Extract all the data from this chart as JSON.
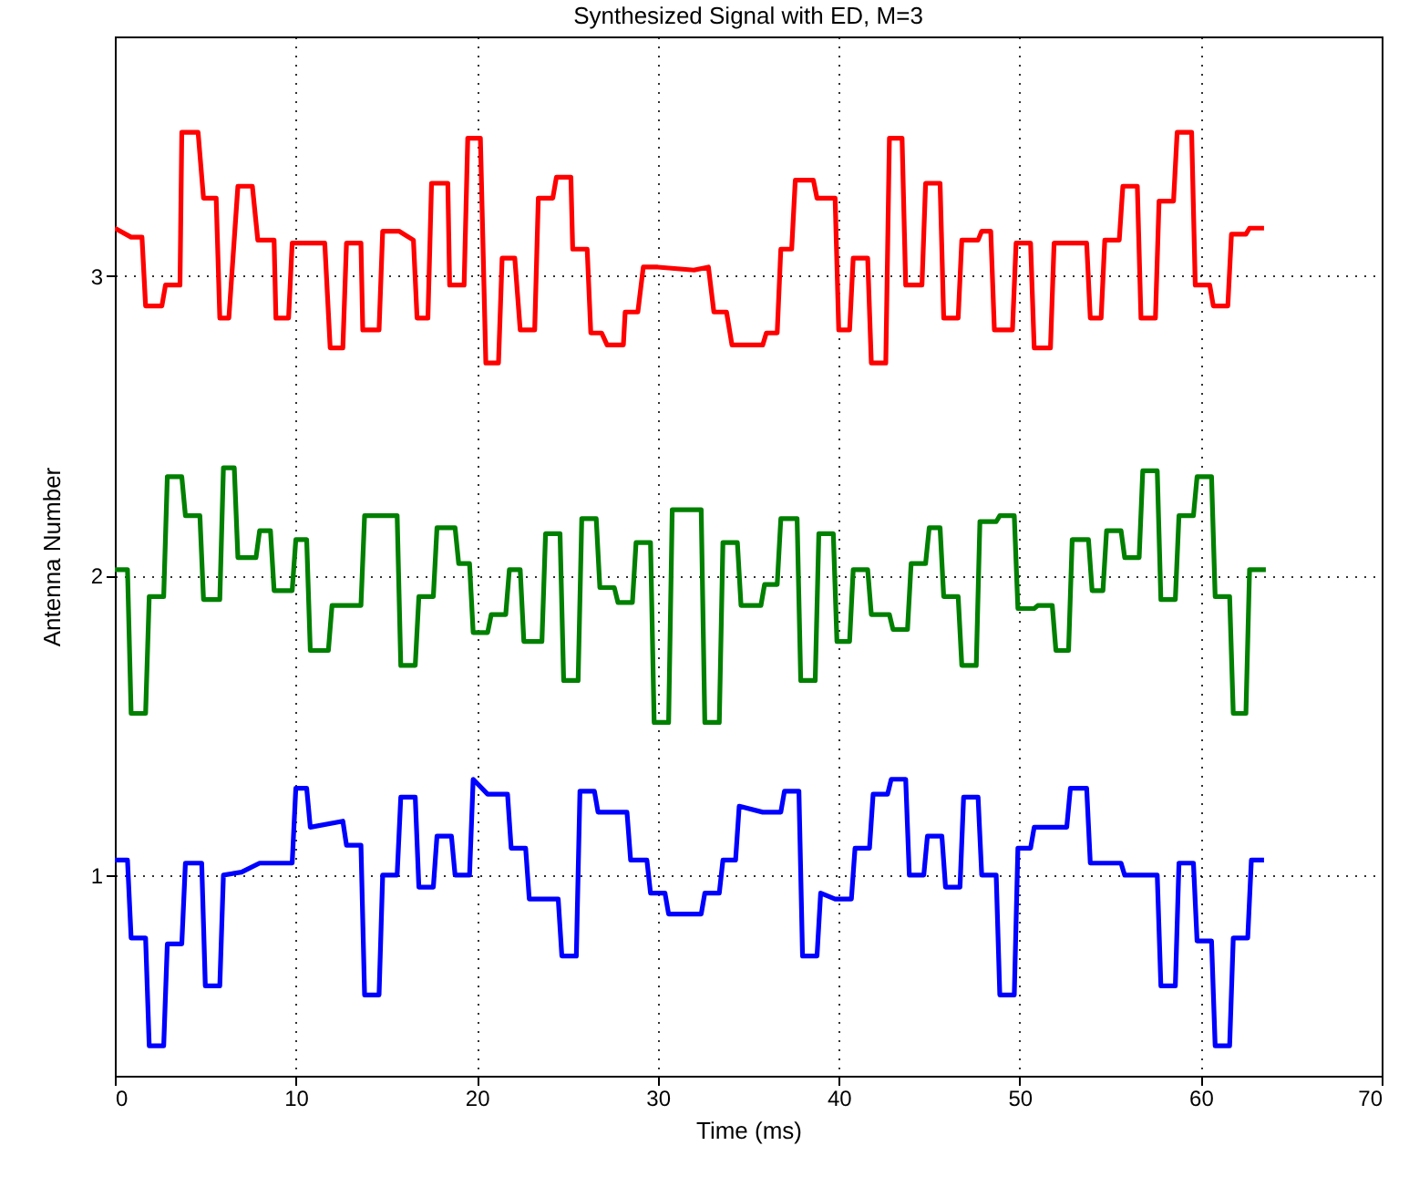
{
  "chart_data": {
    "type": "line",
    "title": "Synthesized Signal with ED, M=3",
    "xlabel": "Time (ms)",
    "ylabel": "Antenna Number",
    "xlim": [
      0,
      70
    ],
    "xticks": [
      0,
      10,
      20,
      30,
      40,
      50,
      60,
      70
    ],
    "ylim": [
      0.33,
      3.8
    ],
    "yticks": [
      1,
      2,
      3
    ],
    "grid": true,
    "series": [
      {
        "color": "#0000ff",
        "x": [
          0,
          0.7,
          0.9,
          1.7,
          1.9,
          2.7,
          2.9,
          3.7,
          3.9,
          4.8,
          5.0,
          5.8,
          6.0,
          7.0,
          8.0,
          9.8,
          10.0,
          10.6,
          10.8,
          12.6,
          12.8,
          13.6,
          13.8,
          14.6,
          14.8,
          15.6,
          15.8,
          16.6,
          16.8,
          17.6,
          17.8,
          18.6,
          18.8,
          19.6,
          19.8,
          20.6,
          21.7,
          21.9,
          22.7,
          22.9,
          24.5,
          24.7,
          25.5,
          25.7,
          26.5,
          26.7,
          28.3,
          28.5,
          29.4,
          29.6,
          30.4,
          30.6,
          32.4,
          32.6,
          33.4,
          33.6,
          34.3,
          34.5,
          35.8,
          36.8,
          37.0,
          37.8,
          38.0,
          38.8,
          39.0,
          39.8,
          40.7,
          40.9,
          41.7,
          41.9,
          42.7,
          42.9,
          43.7,
          43.9,
          44.7,
          44.9,
          45.7,
          45.9,
          46.7,
          46.9,
          47.7,
          47.9,
          48.7,
          48.9,
          49.7,
          49.9,
          50.6,
          50.8,
          52.6,
          52.8,
          53.7,
          53.9,
          55.6,
          55.8,
          57.6,
          57.8,
          58.6,
          58.8,
          59.6,
          59.8,
          60.6,
          60.8,
          61.6,
          61.8,
          62.6,
          62.8,
          63.5
        ],
        "values": [
          1.05,
          1.05,
          0.79,
          0.79,
          0.43,
          0.43,
          0.77,
          0.77,
          1.04,
          1.04,
          0.63,
          0.63,
          1.0,
          1.01,
          1.04,
          1.04,
          1.29,
          1.29,
          1.16,
          1.18,
          1.1,
          1.1,
          0.6,
          0.6,
          1.0,
          1.0,
          1.26,
          1.26,
          0.96,
          0.96,
          1.13,
          1.13,
          1.0,
          1.0,
          1.32,
          1.27,
          1.27,
          1.09,
          1.09,
          0.92,
          0.92,
          0.73,
          0.73,
          1.28,
          1.28,
          1.21,
          1.21,
          1.05,
          1.05,
          0.94,
          0.94,
          0.87,
          0.87,
          0.94,
          0.94,
          1.05,
          1.05,
          1.23,
          1.21,
          1.21,
          1.28,
          1.28,
          0.73,
          0.73,
          0.94,
          0.92,
          0.92,
          1.09,
          1.09,
          1.27,
          1.27,
          1.32,
          1.32,
          1.0,
          1.0,
          1.13,
          1.13,
          0.96,
          0.96,
          1.26,
          1.26,
          1.0,
          1.0,
          0.6,
          0.6,
          1.09,
          1.09,
          1.16,
          1.16,
          1.29,
          1.29,
          1.04,
          1.04,
          1.0,
          1.0,
          0.63,
          0.63,
          1.04,
          1.04,
          0.78,
          0.78,
          0.43,
          0.43,
          0.79,
          0.79,
          1.05,
          1.05
        ]
      },
      {
        "color": "#008000",
        "x": [
          0,
          0.7,
          0.9,
          1.7,
          1.9,
          2.7,
          2.9,
          3.7,
          3.9,
          4.7,
          4.9,
          5.8,
          6.0,
          6.6,
          6.8,
          7.8,
          8.0,
          8.6,
          8.8,
          9.8,
          10.0,
          10.6,
          10.8,
          11.8,
          12.0,
          13.6,
          13.8,
          15.6,
          15.8,
          16.6,
          16.8,
          17.6,
          17.8,
          18.8,
          19.0,
          19.6,
          19.8,
          20.6,
          20.8,
          21.6,
          21.8,
          22.4,
          22.6,
          23.6,
          23.8,
          24.6,
          24.8,
          25.6,
          25.8,
          26.6,
          26.8,
          27.6,
          27.8,
          28.6,
          28.8,
          29.6,
          29.8,
          30.6,
          30.8,
          32.4,
          32.6,
          33.4,
          33.6,
          34.4,
          34.6,
          35.7,
          35.9,
          36.6,
          36.8,
          37.7,
          37.9,
          38.7,
          38.9,
          39.7,
          39.9,
          40.6,
          40.8,
          41.6,
          41.8,
          42.8,
          43.0,
          43.8,
          44.0,
          44.8,
          45.0,
          45.6,
          45.8,
          46.6,
          46.8,
          47.6,
          47.8,
          48.7,
          48.9,
          49.7,
          49.9,
          50.8,
          51.0,
          51.8,
          52.0,
          52.7,
          52.9,
          53.8,
          54.0,
          54.6,
          54.8,
          55.6,
          55.8,
          56.6,
          56.8,
          57.6,
          57.8,
          58.6,
          58.8,
          59.6,
          59.8,
          60.6,
          60.8,
          61.6,
          61.8,
          62.5,
          62.7,
          63.6
        ],
        "values": [
          2.02,
          2.02,
          1.54,
          1.54,
          1.93,
          1.93,
          2.33,
          2.33,
          2.2,
          2.2,
          1.92,
          1.92,
          2.36,
          2.36,
          2.06,
          2.06,
          2.15,
          2.15,
          1.95,
          1.95,
          2.12,
          2.12,
          1.75,
          1.75,
          1.9,
          1.9,
          2.2,
          2.2,
          1.7,
          1.7,
          1.93,
          1.93,
          2.16,
          2.16,
          2.04,
          2.04,
          1.81,
          1.81,
          1.87,
          1.87,
          2.02,
          2.02,
          1.78,
          1.78,
          2.14,
          2.14,
          1.65,
          1.65,
          2.19,
          2.19,
          1.96,
          1.96,
          1.91,
          1.91,
          2.11,
          2.11,
          1.51,
          1.51,
          2.22,
          2.22,
          1.51,
          1.51,
          2.11,
          2.11,
          1.9,
          1.9,
          1.97,
          1.97,
          2.19,
          2.19,
          1.65,
          1.65,
          2.14,
          2.14,
          1.78,
          1.78,
          2.02,
          2.02,
          1.87,
          1.87,
          1.82,
          1.82,
          2.04,
          2.04,
          2.16,
          2.16,
          1.93,
          1.93,
          1.7,
          1.7,
          2.18,
          2.18,
          2.2,
          2.2,
          1.89,
          1.89,
          1.9,
          1.9,
          1.75,
          1.75,
          2.12,
          2.12,
          1.95,
          1.95,
          2.15,
          2.15,
          2.06,
          2.06,
          2.35,
          2.35,
          1.92,
          1.92,
          2.2,
          2.2,
          2.33,
          2.33,
          1.93,
          1.93,
          1.54,
          1.54,
          2.02,
          2.02
        ]
      },
      {
        "color": "#ff0000",
        "x": [
          0,
          0.9,
          1.5,
          1.7,
          2.6,
          2.8,
          3.6,
          3.7,
          4.6,
          4.9,
          5.6,
          5.8,
          6.3,
          6.8,
          7.6,
          7.9,
          8.8,
          8.9,
          9.6,
          9.8,
          11.6,
          11.9,
          12.6,
          12.8,
          13.6,
          13.7,
          14.6,
          14.8,
          15.7,
          16.5,
          16.7,
          17.3,
          17.5,
          18.4,
          18.5,
          19.3,
          19.5,
          20.2,
          20.5,
          21.2,
          21.4,
          22.1,
          22.4,
          23.2,
          23.4,
          24.2,
          24.4,
          25.2,
          25.3,
          26.1,
          26.3,
          26.9,
          27.2,
          28.1,
          28.2,
          28.9,
          29.2,
          30.0,
          32.0,
          32.8,
          33.1,
          33.8,
          34.1,
          35.8,
          36.0,
          36.6,
          36.8,
          37.4,
          37.6,
          38.6,
          38.8,
          39.8,
          40.0,
          40.6,
          40.8,
          41.6,
          41.8,
          42.6,
          42.8,
          43.5,
          43.7,
          44.6,
          44.8,
          45.6,
          45.8,
          46.6,
          46.8,
          47.7,
          47.9,
          48.4,
          48.6,
          49.6,
          49.8,
          50.6,
          50.8,
          51.7,
          51.9,
          53.7,
          53.9,
          54.5,
          54.7,
          55.5,
          55.7,
          56.5,
          56.7,
          57.5,
          57.7,
          58.5,
          58.7,
          59.5,
          59.7,
          60.5,
          60.7,
          61.5,
          61.7,
          62.5,
          62.7,
          63.5
        ],
        "values": [
          3.16,
          3.13,
          3.13,
          2.9,
          2.9,
          2.97,
          2.97,
          3.48,
          3.48,
          3.26,
          3.26,
          2.86,
          2.86,
          3.3,
          3.3,
          3.12,
          3.12,
          2.86,
          2.86,
          3.11,
          3.11,
          2.76,
          2.76,
          3.11,
          3.11,
          2.82,
          2.82,
          3.15,
          3.15,
          3.12,
          2.86,
          2.86,
          3.31,
          3.31,
          2.97,
          2.97,
          3.46,
          3.46,
          2.71,
          2.71,
          3.06,
          3.06,
          2.82,
          2.82,
          3.26,
          3.26,
          3.33,
          3.33,
          3.09,
          3.09,
          2.81,
          2.81,
          2.77,
          2.77,
          2.88,
          2.88,
          3.03,
          3.03,
          3.02,
          3.03,
          2.88,
          2.88,
          2.77,
          2.77,
          2.81,
          2.81,
          3.09,
          3.09,
          3.32,
          3.32,
          3.26,
          3.26,
          2.82,
          2.82,
          3.06,
          3.06,
          2.71,
          2.71,
          3.46,
          3.46,
          2.97,
          2.97,
          3.31,
          3.31,
          2.86,
          2.86,
          3.12,
          3.12,
          3.15,
          3.15,
          2.82,
          2.82,
          3.11,
          3.11,
          2.76,
          2.76,
          3.11,
          3.11,
          2.86,
          2.86,
          3.12,
          3.12,
          3.3,
          3.3,
          2.86,
          2.86,
          3.25,
          3.25,
          3.48,
          3.48,
          2.97,
          2.97,
          2.9,
          2.9,
          3.14,
          3.14,
          3.16,
          3.16
        ]
      }
    ]
  }
}
